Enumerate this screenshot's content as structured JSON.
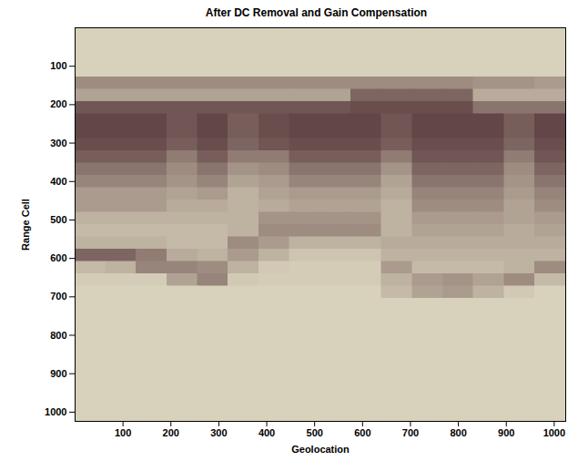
{
  "chart_data": {
    "type": "heatmap",
    "title": "After DC Removal and Gain Compensation",
    "x_label": "Geolocation",
    "y_label": "Range Cell",
    "xlim": [
      0,
      1024
    ],
    "ylim": [
      0,
      1024
    ],
    "xticks": [
      100,
      200,
      300,
      400,
      500,
      600,
      700,
      800,
      900,
      1000
    ],
    "yticks": [
      100,
      200,
      300,
      400,
      500,
      600,
      700,
      800,
      900,
      1000
    ],
    "x_bins": [
      0,
      64,
      128,
      192,
      256,
      320,
      384,
      448,
      512,
      576,
      640,
      704,
      768,
      832,
      896,
      960,
      1024
    ],
    "y_bins": [
      0,
      32,
      64,
      96,
      128,
      160,
      192,
      224,
      256,
      288,
      320,
      352,
      384,
      416,
      448,
      480,
      512,
      544,
      576,
      608,
      640,
      672,
      704,
      736,
      768,
      800,
      832,
      864,
      896,
      928,
      960,
      992,
      1024
    ],
    "zlim": [
      0,
      1
    ],
    "colors": [
      "#d8d1bb",
      "#56373a"
    ],
    "cells": [
      [
        0,
        0,
        0,
        0,
        0,
        0,
        0,
        0,
        0,
        0,
        0,
        0,
        0,
        0,
        0,
        0
      ],
      [
        0,
        0,
        0,
        0,
        0,
        0,
        0,
        0,
        0,
        0,
        0,
        0,
        0,
        0,
        0,
        0
      ],
      [
        0,
        0,
        0,
        0,
        0,
        0,
        0,
        0,
        0,
        0,
        0,
        0,
        0,
        0,
        0,
        0
      ],
      [
        0,
        0,
        0,
        0,
        0,
        0,
        0,
        0,
        0,
        0,
        0,
        0,
        0,
        0,
        0,
        0
      ],
      [
        0.45,
        0.45,
        0.45,
        0.45,
        0.45,
        0.45,
        0.45,
        0.45,
        0.45,
        0.45,
        0.45,
        0.45,
        0.45,
        0.4,
        0.4,
        0.35
      ],
      [
        0.3,
        0.3,
        0.3,
        0.3,
        0.3,
        0.3,
        0.3,
        0.3,
        0.3,
        0.7,
        0.7,
        0.7,
        0.7,
        0.25,
        0.25,
        0.25
      ],
      [
        0.8,
        0.8,
        0.8,
        0.8,
        0.8,
        0.8,
        0.8,
        0.8,
        0.8,
        0.85,
        0.85,
        0.85,
        0.85,
        0.6,
        0.6,
        0.6
      ],
      [
        0.9,
        0.9,
        0.9,
        0.8,
        0.9,
        0.75,
        0.85,
        0.9,
        0.9,
        0.9,
        0.8,
        0.9,
        0.9,
        0.9,
        0.75,
        0.9
      ],
      [
        0.9,
        0.9,
        0.9,
        0.8,
        0.9,
        0.75,
        0.85,
        0.9,
        0.9,
        0.9,
        0.8,
        0.9,
        0.9,
        0.9,
        0.75,
        0.9
      ],
      [
        0.85,
        0.85,
        0.85,
        0.75,
        0.85,
        0.7,
        0.8,
        0.85,
        0.85,
        0.85,
        0.75,
        0.85,
        0.85,
        0.85,
        0.7,
        0.85
      ],
      [
        0.75,
        0.75,
        0.75,
        0.55,
        0.75,
        0.55,
        0.55,
        0.75,
        0.75,
        0.75,
        0.55,
        0.8,
        0.8,
        0.8,
        0.55,
        0.8
      ],
      [
        0.6,
        0.6,
        0.6,
        0.45,
        0.6,
        0.4,
        0.45,
        0.6,
        0.6,
        0.6,
        0.4,
        0.7,
        0.7,
        0.7,
        0.45,
        0.7
      ],
      [
        0.5,
        0.5,
        0.5,
        0.4,
        0.5,
        0.3,
        0.35,
        0.5,
        0.5,
        0.5,
        0.3,
        0.6,
        0.6,
        0.6,
        0.4,
        0.6
      ],
      [
        0.35,
        0.35,
        0.35,
        0.3,
        0.35,
        0.2,
        0.3,
        0.35,
        0.35,
        0.35,
        0.25,
        0.5,
        0.5,
        0.5,
        0.35,
        0.5
      ],
      [
        0.35,
        0.35,
        0.35,
        0.25,
        0.25,
        0.2,
        0.25,
        0.3,
        0.3,
        0.3,
        0.2,
        0.45,
        0.45,
        0.45,
        0.3,
        0.45
      ],
      [
        0.2,
        0.2,
        0.2,
        0.2,
        0.2,
        0.2,
        0.4,
        0.4,
        0.4,
        0.4,
        0.2,
        0.35,
        0.35,
        0.35,
        0.3,
        0.35
      ],
      [
        0.15,
        0.15,
        0.15,
        0.15,
        0.15,
        0.2,
        0.45,
        0.45,
        0.45,
        0.45,
        0.2,
        0.3,
        0.3,
        0.3,
        0.25,
        0.3
      ],
      [
        0.2,
        0.2,
        0.2,
        0.15,
        0.15,
        0.45,
        0.35,
        0.2,
        0.2,
        0.2,
        0.25,
        0.25,
        0.25,
        0.25,
        0.25,
        0.25
      ],
      [
        0.7,
        0.7,
        0.55,
        0.25,
        0.2,
        0.35,
        0.2,
        0.08,
        0.08,
        0.08,
        0.2,
        0.2,
        0.2,
        0.2,
        0.2,
        0.2
      ],
      [
        0.15,
        0.2,
        0.5,
        0.5,
        0.45,
        0.2,
        0.05,
        0.03,
        0.03,
        0.03,
        0.35,
        0.15,
        0.15,
        0.15,
        0.2,
        0.45
      ],
      [
        0.03,
        0.03,
        0.03,
        0.3,
        0.5,
        0.05,
        0.03,
        0.03,
        0.03,
        0.03,
        0.2,
        0.35,
        0.4,
        0.3,
        0.45,
        0.15
      ],
      [
        0,
        0,
        0,
        0,
        0,
        0,
        0,
        0,
        0,
        0,
        0.15,
        0.3,
        0.35,
        0.2,
        0.05,
        0
      ],
      [
        0,
        0,
        0,
        0,
        0,
        0,
        0,
        0,
        0,
        0,
        0,
        0,
        0,
        0,
        0,
        0
      ],
      [
        0,
        0,
        0,
        0,
        0,
        0,
        0,
        0,
        0,
        0,
        0,
        0,
        0,
        0,
        0,
        0
      ],
      [
        0,
        0,
        0,
        0,
        0,
        0,
        0,
        0,
        0,
        0,
        0,
        0,
        0,
        0,
        0,
        0
      ],
      [
        0,
        0,
        0,
        0,
        0,
        0,
        0,
        0,
        0,
        0,
        0,
        0,
        0,
        0,
        0,
        0
      ],
      [
        0,
        0,
        0,
        0,
        0,
        0,
        0,
        0,
        0,
        0,
        0,
        0,
        0,
        0,
        0,
        0
      ],
      [
        0,
        0,
        0,
        0,
        0,
        0,
        0,
        0,
        0,
        0,
        0,
        0,
        0,
        0,
        0,
        0
      ],
      [
        0,
        0,
        0,
        0,
        0,
        0,
        0,
        0,
        0,
        0,
        0,
        0,
        0,
        0,
        0,
        0
      ],
      [
        0,
        0,
        0,
        0,
        0,
        0,
        0,
        0,
        0,
        0,
        0,
        0,
        0,
        0,
        0,
        0
      ],
      [
        0,
        0,
        0,
        0,
        0,
        0,
        0,
        0,
        0,
        0,
        0,
        0,
        0,
        0,
        0,
        0
      ],
      [
        0,
        0,
        0,
        0,
        0,
        0,
        0,
        0,
        0,
        0,
        0,
        0,
        0,
        0,
        0,
        0
      ]
    ]
  }
}
